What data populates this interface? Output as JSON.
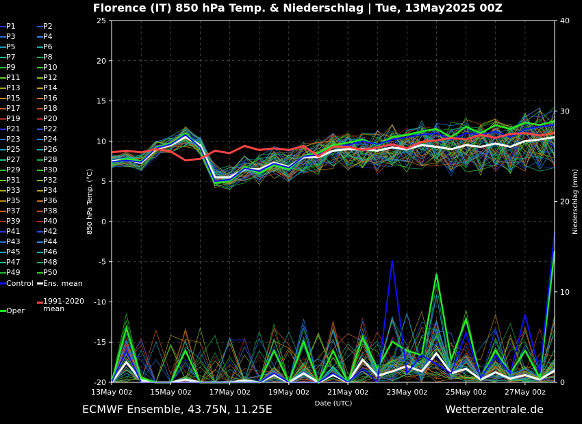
{
  "title": "Florence  (IT)  850 hPa Temp. & Niederschlag | Tue, 13May2025 00Z",
  "footer": {
    "left": "ECMWF Ensemble, 43.75N, 11.25E",
    "right": "Wetterzentrale.de"
  },
  "legend": {
    "members": [
      "P1",
      "P2",
      "P3",
      "P4",
      "P5",
      "P6",
      "P7",
      "P8",
      "P9",
      "P10",
      "P11",
      "P12",
      "P13",
      "P14",
      "P15",
      "P16",
      "P17",
      "P18",
      "P19",
      "P20",
      "P21",
      "P22",
      "P23",
      "P24",
      "P25",
      "P26",
      "P27",
      "P28",
      "P29",
      "P30",
      "P31",
      "P32",
      "P33",
      "P34",
      "P35",
      "P36",
      "P37",
      "P38",
      "P39",
      "P40",
      "P41",
      "P42",
      "P43",
      "P44",
      "P45",
      "P46",
      "P47",
      "P48",
      "P49",
      "P50"
    ],
    "colors": [
      "#2233dd",
      "#2255ee",
      "#1e6fd9",
      "#2288ee",
      "#15a0c8",
      "#18b0b0",
      "#10c090",
      "#15b060",
      "#20c030",
      "#33cc22",
      "#66cc22",
      "#8fbf1a",
      "#a8a81a",
      "#bfa01a",
      "#c98a1a",
      "#cc7020",
      "#c85a25",
      "#c04a22",
      "#a83020",
      "#b02828",
      "#2233dd",
      "#2255ee",
      "#1e6fd9",
      "#2288ee",
      "#15a0c8",
      "#18b0b0",
      "#10c090",
      "#15b060",
      "#20c030",
      "#33cc22",
      "#66cc22",
      "#8fbf1a",
      "#a8a81a",
      "#bfa01a",
      "#c98a1a",
      "#cc7020",
      "#c85a25",
      "#c04a22",
      "#a83020",
      "#b02828",
      "#2233dd",
      "#2255ee",
      "#1e6fd9",
      "#2288ee",
      "#15a0c8",
      "#18b0b0",
      "#10c090",
      "#15b060",
      "#20c030",
      "#33cc22"
    ],
    "control": "Control",
    "ens_mean": "Ens. mean",
    "clim_mean": "1991-2020 mean",
    "oper": "Oper",
    "control_color": "#1010ff",
    "ens_mean_color": "#ffffff",
    "clim_color": "#ff4444",
    "oper_color": "#22ee22"
  },
  "chart_data": {
    "type": "line",
    "xlabel": "Date (UTC)",
    "ylabel": "850 hPa Temp. (°C)",
    "y2label": "Niederschlag (mm)",
    "ylim": [
      -20,
      25
    ],
    "y2lim": [
      0,
      40
    ],
    "yticks": [
      -20,
      -15,
      -10,
      -5,
      0,
      5,
      10,
      15,
      20,
      25
    ],
    "y2ticks": [
      0,
      10,
      20,
      30,
      40
    ],
    "x_ticks": [
      "13May 00z",
      "15May 00z",
      "17May 00z",
      "19May 00z",
      "21May 00z",
      "23May 00z",
      "25May 00z",
      "27May 00z"
    ],
    "x_range_days": [
      0,
      15
    ],
    "grid": true,
    "series": [
      {
        "name": "Ens. mean",
        "x": [
          0,
          0.5,
          1,
          1.5,
          2,
          2.5,
          3,
          3.5,
          4,
          4.5,
          5,
          5.5,
          6,
          6.5,
          7,
          7.5,
          8,
          8.5,
          9,
          9.5,
          10,
          10.5,
          11,
          11.5,
          12,
          12.5,
          13,
          13.5,
          14,
          14.5,
          15
        ],
        "values": [
          7.5,
          7.7,
          7.3,
          9.0,
          9.5,
          10.5,
          9.5,
          5.5,
          5.5,
          6.5,
          6.5,
          7.3,
          6.8,
          8.0,
          8.0,
          8.8,
          9.0,
          9.0,
          8.8,
          9.2,
          9.0,
          9.5,
          9.3,
          9.0,
          9.5,
          9.3,
          9.7,
          9.3,
          10.0,
          10.2,
          10.5
        ]
      },
      {
        "name": "Oper",
        "x": [
          0,
          0.5,
          1,
          1.5,
          2,
          2.5,
          3,
          3.5,
          4,
          4.5,
          5,
          5.5,
          6,
          6.5,
          7,
          7.5,
          8,
          8.5,
          9,
          9.5,
          10,
          10.5,
          11,
          11.5,
          12,
          12.5,
          13,
          13.5,
          14,
          14.5,
          15
        ],
        "values": [
          7.3,
          7.8,
          7.5,
          9.2,
          9.7,
          11.0,
          9.0,
          4.8,
          5.0,
          6.8,
          6.0,
          7.0,
          6.5,
          8.2,
          8.5,
          9.5,
          9.8,
          10.2,
          9.5,
          10.5,
          10.8,
          11.2,
          11.5,
          10.5,
          11.8,
          11.0,
          12.0,
          11.5,
          12.3,
          12.0,
          12.5
        ]
      },
      {
        "name": "Control",
        "x": [
          0,
          0.5,
          1,
          1.5,
          2,
          2.5,
          3,
          3.5,
          4,
          4.5,
          5,
          5.5,
          6,
          6.5,
          7,
          7.5,
          8,
          8.5,
          9,
          9.5,
          10,
          10.5,
          11,
          11.5,
          12,
          12.5,
          13,
          13.5,
          14,
          14.5,
          15
        ],
        "values": [
          7.4,
          7.6,
          7.4,
          9.1,
          9.6,
          10.8,
          9.2,
          5.0,
          5.2,
          6.6,
          6.3,
          7.2,
          6.7,
          8.1,
          8.3,
          9.2,
          9.5,
          10.0,
          9.6,
          10.2,
          10.5,
          10.8,
          11.0,
          10.2,
          11.0,
          10.8,
          11.2,
          10.5,
          11.5,
          11.8,
          12.0
        ]
      },
      {
        "name": "1991-2020 mean",
        "x": [
          0,
          0.5,
          1,
          1.5,
          2,
          2.5,
          3,
          3.5,
          4,
          4.5,
          5,
          5.5,
          6,
          6.5,
          7,
          7.5,
          8,
          8.5,
          9,
          9.5,
          10,
          10.5,
          11,
          11.5,
          12,
          12.5,
          13,
          13.5,
          14,
          14.5,
          15
        ],
        "values": [
          8.6,
          8.8,
          8.6,
          9.0,
          8.7,
          7.6,
          7.8,
          8.8,
          8.5,
          9.4,
          8.9,
          9.1,
          8.9,
          9.4,
          8.1,
          9.3,
          9.3,
          8.9,
          9.2,
          9.6,
          9.1,
          9.9,
          10.1,
          10.4,
          10.2,
          10.8,
          10.4,
          10.9,
          11.0,
          10.7,
          11.0
        ]
      }
    ],
    "precip_series": [
      {
        "name": "Ens. mean",
        "x": [
          0,
          0.5,
          1,
          1.5,
          2,
          2.5,
          3,
          3.5,
          4,
          4.5,
          5,
          5.5,
          6,
          6.5,
          7,
          7.5,
          8,
          8.5,
          9,
          9.5,
          10,
          10.5,
          11,
          11.5,
          12,
          12.5,
          13,
          13.5,
          14,
          14.5,
          15
        ],
        "values": [
          0,
          2.2,
          0.2,
          0,
          0,
          0.3,
          0,
          0,
          0,
          0.2,
          0,
          0.8,
          0,
          1.0,
          0,
          0.8,
          0,
          2.5,
          0.7,
          1.2,
          1.8,
          1.2,
          3.2,
          1.0,
          1.5,
          0.3,
          1.1,
          0.4,
          0.8,
          0.3,
          1.3
        ]
      },
      {
        "name": "Oper",
        "x": [
          0,
          0.5,
          1,
          1.5,
          2,
          2.5,
          3,
          3.5,
          4,
          4.5,
          5,
          5.5,
          6,
          6.5,
          7,
          7.5,
          8,
          8.5,
          9,
          9.5,
          10,
          10.5,
          11,
          11.5,
          12,
          12.5,
          13,
          13.5,
          14,
          14.5,
          15
        ],
        "values": [
          0,
          6.0,
          0.5,
          0,
          0,
          3.5,
          0,
          0,
          0,
          0,
          0,
          3.5,
          0,
          4.5,
          0,
          3.5,
          0,
          5.0,
          1.5,
          4.5,
          3.5,
          3.0,
          12.0,
          2.5,
          7.0,
          0.5,
          3.5,
          1.0,
          3.5,
          0.5,
          14.5
        ]
      },
      {
        "name": "Control",
        "x": [
          0,
          0.5,
          1,
          1.5,
          2,
          2.5,
          3,
          3.5,
          4,
          4.5,
          5,
          5.5,
          6,
          6.5,
          7,
          7.5,
          8,
          8.5,
          9,
          9.5,
          10,
          10.5,
          11,
          11.5,
          12,
          12.5,
          13,
          13.5,
          14,
          14.5,
          15
        ],
        "values": [
          0,
          3.5,
          0,
          0,
          0,
          0,
          0,
          0,
          0,
          0,
          0,
          1.0,
          0,
          0,
          0,
          1.0,
          0,
          1.5,
          0,
          13.5,
          1.0,
          3.0,
          2.0,
          1.0,
          5.5,
          0.5,
          3.0,
          1.0,
          7.5,
          1.0,
          16.5
        ]
      }
    ]
  }
}
